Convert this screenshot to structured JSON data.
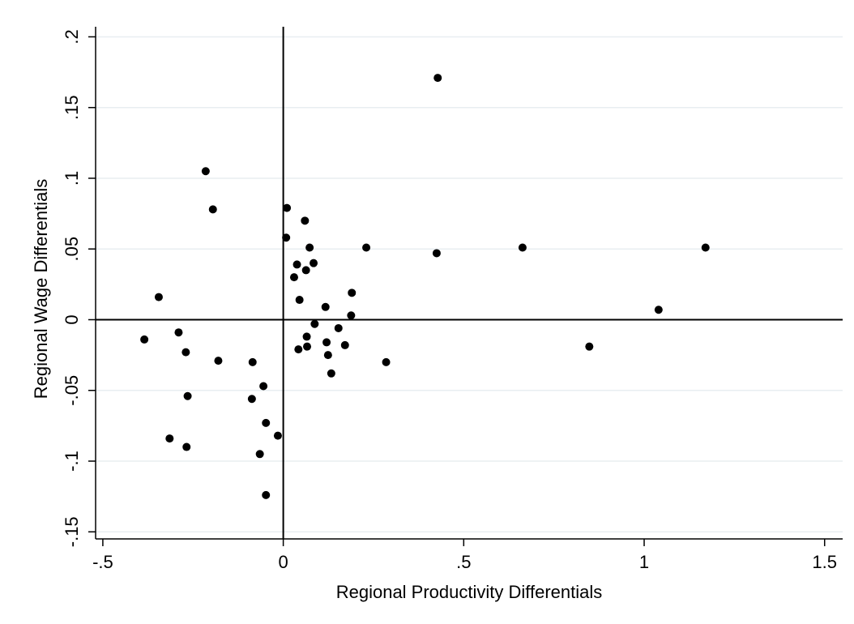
{
  "chart_data": {
    "type": "scatter",
    "xlabel": "Regional Productivity Differentials",
    "ylabel": "Regional Wage Differentials",
    "xlim": [
      -0.52,
      1.55
    ],
    "ylim": [
      -0.155,
      0.21
    ],
    "grid": true,
    "reference_lines": {
      "x": 0,
      "y": 0
    },
    "x_ticks": [
      {
        "value": -0.5,
        "label": "-.5"
      },
      {
        "value": 0,
        "label": "0"
      },
      {
        "value": 0.5,
        "label": ".5"
      },
      {
        "value": 1,
        "label": "1"
      },
      {
        "value": 1.5,
        "label": "1.5"
      }
    ],
    "y_ticks": [
      {
        "value": -0.15,
        "label": "-.15"
      },
      {
        "value": -0.1,
        "label": "-.1"
      },
      {
        "value": -0.05,
        "label": "-.05"
      },
      {
        "value": 0,
        "label": "0"
      },
      {
        "value": 0.05,
        "label": ".05"
      },
      {
        "value": 0.1,
        "label": ".1"
      },
      {
        "value": 0.15,
        "label": ".15"
      },
      {
        "value": 0.2,
        "label": ".2"
      }
    ],
    "points": [
      {
        "x": 0.428,
        "y": 0.171
      },
      {
        "x": -0.215,
        "y": 0.105
      },
      {
        "x": -0.195,
        "y": 0.078
      },
      {
        "x": 0.01,
        "y": 0.079
      },
      {
        "x": 0.008,
        "y": 0.058
      },
      {
        "x": 0.06,
        "y": 0.07
      },
      {
        "x": 0.073,
        "y": 0.051
      },
      {
        "x": 0.23,
        "y": 0.051
      },
      {
        "x": 0.425,
        "y": 0.047
      },
      {
        "x": 0.663,
        "y": 0.051
      },
      {
        "x": 1.17,
        "y": 0.051
      },
      {
        "x": 0.038,
        "y": 0.039
      },
      {
        "x": 0.084,
        "y": 0.04
      },
      {
        "x": 0.063,
        "y": 0.035
      },
      {
        "x": 0.03,
        "y": 0.03
      },
      {
        "x": 0.19,
        "y": 0.019
      },
      {
        "x": 0.045,
        "y": 0.014
      },
      {
        "x": 0.117,
        "y": 0.009
      },
      {
        "x": 1.04,
        "y": 0.007
      },
      {
        "x": 0.188,
        "y": 0.003
      },
      {
        "x": -0.345,
        "y": 0.016
      },
      {
        "x": 0.087,
        "y": -0.003
      },
      {
        "x": 0.153,
        "y": -0.006
      },
      {
        "x": -0.29,
        "y": -0.009
      },
      {
        "x": -0.385,
        "y": -0.014
      },
      {
        "x": 0.065,
        "y": -0.012
      },
      {
        "x": 0.12,
        "y": -0.016
      },
      {
        "x": 0.171,
        "y": -0.018
      },
      {
        "x": 0.066,
        "y": -0.019
      },
      {
        "x": 0.042,
        "y": -0.021
      },
      {
        "x": 0.848,
        "y": -0.019
      },
      {
        "x": -0.27,
        "y": -0.023
      },
      {
        "x": 0.124,
        "y": -0.025
      },
      {
        "x": -0.18,
        "y": -0.029
      },
      {
        "x": -0.085,
        "y": -0.03
      },
      {
        "x": 0.285,
        "y": -0.03
      },
      {
        "x": 0.133,
        "y": -0.038
      },
      {
        "x": -0.055,
        "y": -0.047
      },
      {
        "x": -0.265,
        "y": -0.054
      },
      {
        "x": -0.087,
        "y": -0.056
      },
      {
        "x": -0.048,
        "y": -0.073
      },
      {
        "x": -0.015,
        "y": -0.082
      },
      {
        "x": -0.315,
        "y": -0.084
      },
      {
        "x": -0.268,
        "y": -0.09
      },
      {
        "x": -0.065,
        "y": -0.095
      },
      {
        "x": -0.048,
        "y": -0.124
      }
    ]
  },
  "colors": {
    "background": "#ffffff",
    "grid": "#e8eef1",
    "axis": "#000000",
    "marker": "#000000"
  }
}
